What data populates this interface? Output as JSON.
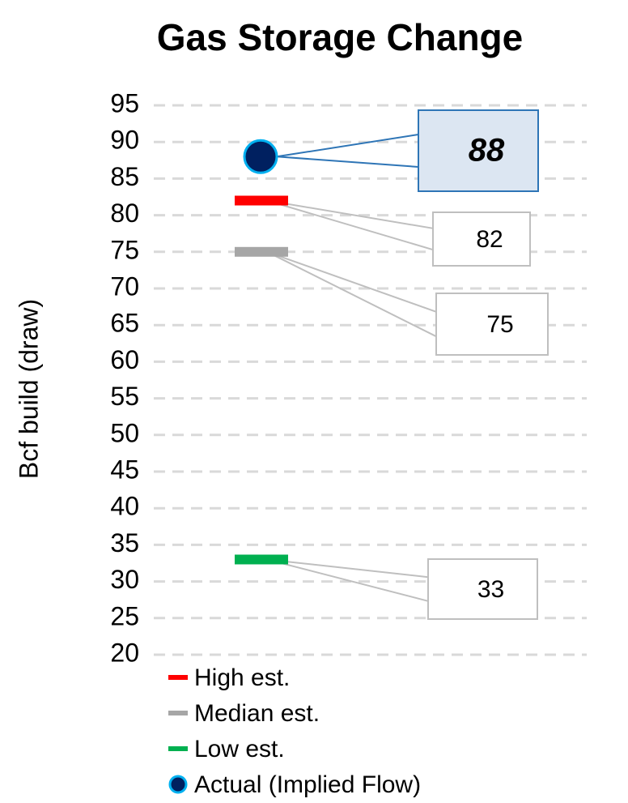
{
  "chart_data": {
    "type": "range-markers",
    "title": "Gas Storage Change",
    "y_label": "Bcf build (draw)",
    "ylim": [
      20,
      95
    ],
    "yticks": [
      20,
      25,
      30,
      35,
      40,
      45,
      50,
      55,
      60,
      65,
      70,
      75,
      80,
      85,
      90,
      95
    ],
    "grid": true,
    "series": [
      {
        "name": "High est.",
        "color": "#ff0000",
        "marker": "dash",
        "values": [
          82
        ]
      },
      {
        "name": "Median est.",
        "color": "#a6a6a6",
        "marker": "dash",
        "values": [
          75
        ]
      },
      {
        "name": "Low est.",
        "color": "#00b050",
        "marker": "dash",
        "values": [
          33
        ]
      },
      {
        "name": "Actual (Implied Flow)",
        "color": "#002060",
        "marker": "circle",
        "values": [
          88
        ]
      }
    ]
  }
}
